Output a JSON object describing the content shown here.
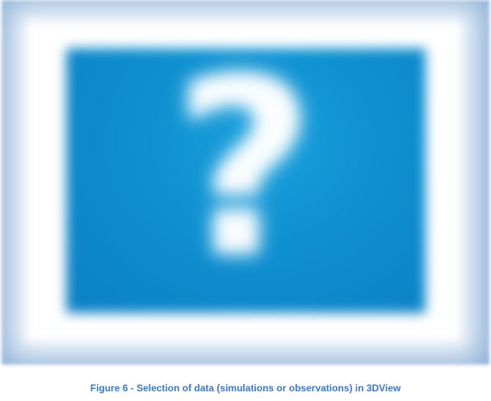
{
  "figure": {
    "image_icon": "question-mark-icon",
    "caption": "Figure 6 - Selection of data (simulations or observations) in 3DView"
  },
  "colors": {
    "outer_background": "#8fb2d8",
    "frame": "#ffffff",
    "panel": "#0e8fd0",
    "caption_text": "#3b78c2"
  }
}
